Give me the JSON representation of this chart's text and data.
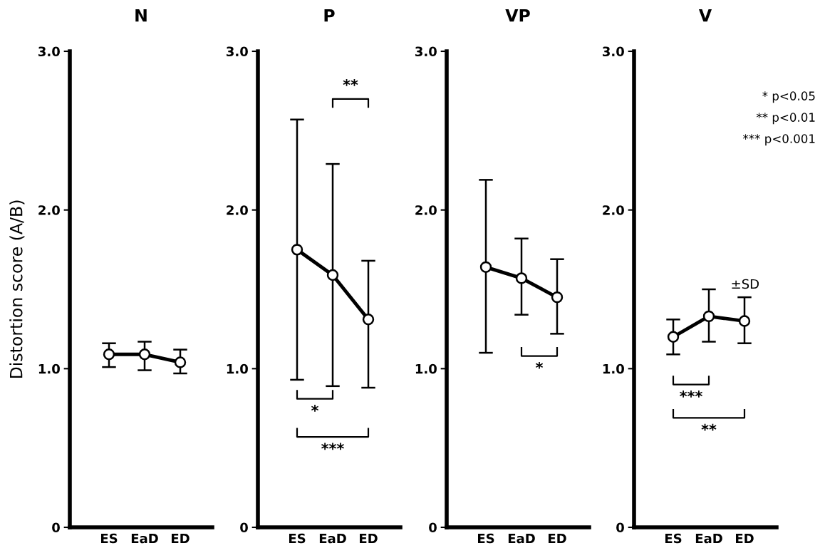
{
  "chart_data": [
    {
      "type": "line",
      "title": "N",
      "ylabel": "Distortion score (A/B)",
      "categories": [
        "ES",
        "EaD",
        "ED"
      ],
      "marker": "circle",
      "line_style": "solid",
      "ylim": [
        0,
        3
      ],
      "yticks": [
        0,
        {
          "value": 1,
          "label": "1.0"
        },
        {
          "value": 2,
          "label": "2.0"
        },
        {
          "value": 3,
          "label": "3.0"
        }
      ],
      "series": [
        {
          "color": "#000000",
          "values": [
            1.09,
            1.09,
            1.04
          ],
          "errors": [
            [
              1.01,
              1.16
            ],
            [
              0.99,
              1.17
            ],
            [
              0.97,
              1.12
            ]
          ]
        }
      ]
    },
    {
      "type": "line",
      "title": "P",
      "categories": [
        "ES",
        "EaD",
        "ED"
      ],
      "marker": "circle",
      "line_style": "solid",
      "ylim": [
        0,
        3
      ],
      "yticks": [
        0,
        {
          "value": 1,
          "label": "1.0"
        },
        {
          "value": 2,
          "label": "2.0"
        },
        {
          "value": 3,
          "label": "3.0"
        }
      ],
      "series": [
        {
          "color": "#000000",
          "values": [
            1.75,
            1.59,
            1.31
          ],
          "errors": [
            [
              0.93,
              2.57
            ],
            [
              0.89,
              2.29
            ],
            [
              0.88,
              1.68
            ]
          ]
        }
      ],
      "annotations": [
        "**",
        "*",
        "***"
      ]
    },
    {
      "type": "line",
      "title": "VP",
      "categories": [
        "ES",
        "EaD",
        "ED"
      ],
      "marker": "circle",
      "line_style": "solid",
      "ylim": [
        0,
        3
      ],
      "yticks": [
        0,
        {
          "value": 1,
          "label": "1.0"
        },
        {
          "value": 2,
          "label": "2.0"
        },
        {
          "value": 3,
          "label": "3.0"
        }
      ],
      "series": [
        {
          "color": "#000000",
          "values": [
            1.64,
            1.57,
            1.45
          ],
          "errors": [
            [
              1.1,
              2.19
            ],
            [
              1.34,
              1.82
            ],
            [
              1.22,
              1.69
            ]
          ]
        }
      ],
      "annotations": [
        "*"
      ]
    },
    {
      "type": "line",
      "title": "V",
      "categories": [
        "ES",
        "EaD",
        "ED"
      ],
      "marker": "circle",
      "line_style": "solid",
      "ylim": [
        0,
        3
      ],
      "yticks": [
        0,
        {
          "value": 1,
          "label": "1.0"
        },
        {
          "value": 2,
          "label": "2.0"
        },
        {
          "value": 3,
          "label": "3.0"
        }
      ],
      "series": [
        {
          "color": "#000000",
          "values": [
            1.2,
            1.33,
            1.3
          ],
          "errors": [
            [
              1.09,
              1.31
            ],
            [
              1.17,
              1.5
            ],
            [
              1.16,
              1.45
            ]
          ]
        }
      ],
      "annotations": [
        "***",
        "**",
        "±SD",
        "* p<0.05",
        "** p<0.01",
        "*** p<0.001"
      ]
    }
  ]
}
